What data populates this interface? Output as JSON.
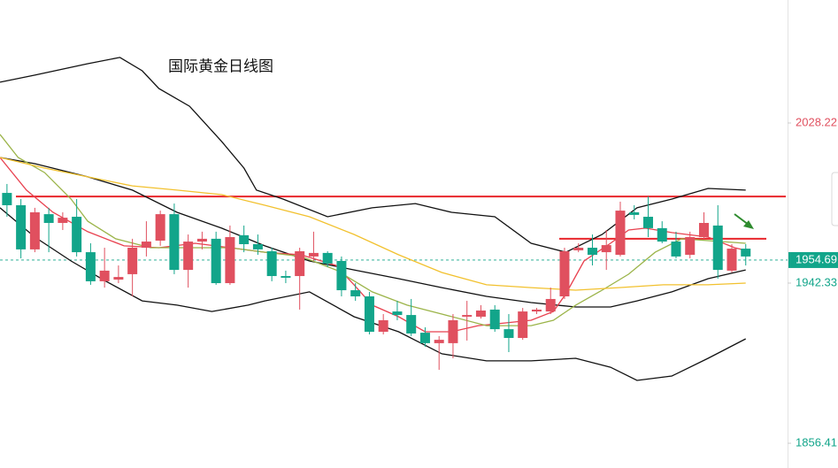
{
  "chart_data": {
    "type": "candlestick",
    "title": "国际黄金日线图",
    "xlim": [
      -0.5,
      56
    ],
    "ylim": [
      1843.13,
      2094.19
    ],
    "yticks": [
      1856.41,
      1942.33,
      2028.22
    ],
    "ytick_colors": [
      "#12a58a",
      "#12a58a",
      "#e0505f"
    ],
    "up_color": "#e0505f",
    "down_color": "#12a58a",
    "open": [
      1990.7,
      1984.1,
      1960.4,
      1979.3,
      1974.6,
      1977.9,
      1958.9,
      1943.3,
      1944.2,
      1947.1,
      1961.3,
      1965.1,
      1979.3,
      1949.4,
      1964.6,
      1966.1,
      1942.3,
      1968.0,
      1963.2,
      1959.4,
      1946.1,
      1946.1,
      1956.6,
      1958.5,
      1954.2,
      1938.5,
      1935.2,
      1916.2,
      1927.1,
      1925.2,
      1915.7,
      1910.1,
      1910.1,
      1924.3,
      1924.3,
      1928.1,
      1917.6,
      1912.9,
      1927.1,
      1927.1,
      1935.2,
      1959.9,
      1961.3,
      1958.9,
      1957.5,
      1980.3,
      1977.9,
      1971.8,
      1964.6,
      1957.5,
      1967.0,
      1973.2,
      1949.0,
      1960.8
    ],
    "close": [
      1984.1,
      1960.4,
      1980.3,
      1974.6,
      1977.4,
      1958.9,
      1943.3,
      1949.0,
      1945.6,
      1961.3,
      1964.6,
      1979.3,
      1949.4,
      1964.6,
      1966.1,
      1942.3,
      1967.0,
      1963.2,
      1960.4,
      1946.1,
      1945.2,
      1959.4,
      1958.5,
      1952.8,
      1938.5,
      1935.2,
      1916.2,
      1922.4,
      1925.2,
      1915.3,
      1910.1,
      1911.9,
      1922.4,
      1925.2,
      1927.6,
      1917.6,
      1912.9,
      1927.1,
      1928.1,
      1933.8,
      1959.4,
      1961.3,
      1957.5,
      1962.7,
      1981.2,
      1978.9,
      1971.8,
      1964.6,
      1956.6,
      1967.0,
      1974.6,
      1949.4,
      1960.8,
      1956.6
    ],
    "high": [
      1995.5,
      1987.4,
      1982.7,
      1982.7,
      1980.3,
      1987.4,
      1963.7,
      1961.3,
      1951.8,
      1966.1,
      1975.5,
      1981.2,
      1985.0,
      1968.4,
      1969.9,
      1969.9,
      1973.2,
      1973.2,
      1968.4,
      1961.3,
      1949.0,
      1961.3,
      1969.9,
      1959.4,
      1956.6,
      1942.3,
      1937.6,
      1925.7,
      1932.8,
      1933.8,
      1918.6,
      1913.9,
      1925.7,
      1932.8,
      1930.5,
      1930.5,
      1925.7,
      1929.0,
      1929.0,
      1939.9,
      1961.3,
      1963.7,
      1968.4,
      1970.8,
      1986.0,
      1984.1,
      1988.8,
      1975.5,
      1969.9,
      1969.9,
      1980.3,
      1984.1,
      1963.2,
      1963.2
    ],
    "low": [
      1977.9,
      1955.6,
      1958.9,
      1958.9,
      1970.8,
      1956.6,
      1941.4,
      1939.9,
      1942.3,
      1935.2,
      1956.6,
      1962.3,
      1947.1,
      1939.9,
      1960.4,
      1941.4,
      1941.4,
      1958.9,
      1957.5,
      1943.3,
      1942.3,
      1928.1,
      1954.2,
      1950.9,
      1935.2,
      1932.8,
      1914.8,
      1914.8,
      1922.4,
      1913.9,
      1908.2,
      1895.8,
      1902.0,
      1911.5,
      1923.3,
      1916.2,
      1905.3,
      1911.9,
      1925.7,
      1925.7,
      1933.8,
      1958.9,
      1951.8,
      1949.4,
      1956.6,
      1976.5,
      1967.0,
      1963.7,
      1955.6,
      1955.6,
      1966.1,
      1944.7,
      1948.0,
      1951.8
    ],
    "lines": [
      {
        "color": "#111111",
        "x": [
          -0.5,
          2.0,
          5.8,
          8.1,
          9.7,
          10.9,
          13.1,
          15.4,
          17.0,
          17.9,
          19.8,
          23.0,
          26.2,
          29.3,
          31.9,
          35.0,
          37.6,
          40.1,
          42.7,
          45.2,
          47.7,
          50.3,
          53.0
        ],
        "values": [
          2050.1,
          2053.9,
          2060.0,
          2063.4,
          2056.2,
          2046.7,
          2037.2,
          2018.3,
          2004.0,
          1992.2,
          1987.4,
          1977.9,
          1982.7,
          1985.0,
          1980.3,
          1977.9,
          1963.7,
          1958.9,
          1968.4,
          1982.7,
          1987.4,
          1993.1,
          1992.2
        ]
      },
      {
        "color": "#111111",
        "x": [
          -0.5,
          2.0,
          5.8,
          9.0,
          12.2,
          15.4,
          18.5,
          21.7,
          24.9,
          28.1,
          31.2,
          34.4,
          37.6,
          40.8,
          43.3,
          45.2,
          47.7,
          50.3,
          53.0
        ],
        "values": [
          2009.7,
          2006.4,
          1999.3,
          1992.2,
          1980.3,
          1971.8,
          1962.3,
          1954.2,
          1949.4,
          1944.7,
          1939.9,
          1935.2,
          1931.9,
          1929.5,
          1929.5,
          1932.8,
          1937.6,
          1944.7,
          1949.4
        ]
      },
      {
        "color": "#111111",
        "x": [
          -0.5,
          2.0,
          4.6,
          7.1,
          9.7,
          12.2,
          14.7,
          17.3,
          18.5,
          21.7,
          24.9,
          28.1,
          31.2,
          34.4,
          37.6,
          40.8,
          43.3,
          45.2,
          47.7,
          50.3,
          53.0
        ],
        "values": [
          1982.7,
          1967.0,
          1954.2,
          1943.3,
          1932.8,
          1930.5,
          1927.1,
          1930.5,
          1932.8,
          1937.6,
          1924.3,
          1916.2,
          1904.4,
          1900.6,
          1900.6,
          1902.0,
          1897.2,
          1890.1,
          1892.5,
          1902.0,
          1912.4
        ]
      },
      {
        "color": "#e8414f",
        "x": [
          -0.5,
          1.4,
          3.3,
          5.8,
          8.4,
          10.9,
          13.5,
          16.0,
          18.5,
          21.1,
          23.6,
          24.9,
          26.2,
          28.1,
          30.0,
          31.9,
          33.8,
          35.7,
          37.6,
          39.2,
          40.1,
          41.4,
          43.3,
          44.6,
          45.8,
          47.7,
          50.3,
          52.2,
          53.0
        ],
        "values": [
          2009.7,
          1992.2,
          1980.3,
          1969.9,
          1962.3,
          1961.3,
          1963.7,
          1961.3,
          1958.9,
          1957.5,
          1951.8,
          1941.4,
          1930.5,
          1924.3,
          1916.2,
          1916.2,
          1919.5,
          1920.9,
          1922.4,
          1927.1,
          1936.6,
          1954.2,
          1963.7,
          1970.8,
          1971.8,
          1969.4,
          1967.0,
          1961.3,
          1959.9
        ]
      },
      {
        "color": "#9bb449",
        "x": [
          -0.5,
          0.8,
          2.7,
          4.6,
          5.8,
          7.8,
          10.3,
          13.5,
          16.0,
          18.5,
          21.1,
          23.6,
          26.2,
          28.7,
          31.2,
          34.4,
          37.6,
          39.2,
          40.8,
          42.7,
          44.6,
          46.5,
          48.4,
          50.3,
          53.0
        ],
        "values": [
          2022.1,
          2009.7,
          2001.6,
          1987.4,
          1975.5,
          1966.1,
          1961.3,
          1961.3,
          1961.3,
          1958.9,
          1956.6,
          1949.4,
          1937.6,
          1930.5,
          1925.7,
          1919.5,
          1919.5,
          1922.4,
          1930.5,
          1938.5,
          1947.1,
          1958.9,
          1966.1,
          1965.1,
          1963.7
        ]
      },
      {
        "color": "#f2c12e",
        "x": [
          -0.5,
          2.7,
          5.8,
          9.0,
          12.2,
          15.4,
          18.5,
          21.7,
          24.9,
          28.1,
          31.2,
          34.4,
          37.6,
          40.8,
          43.9,
          47.1,
          50.3,
          53.0
        ],
        "values": [
          2009.7,
          2004.0,
          1999.3,
          1994.5,
          1992.2,
          1989.8,
          1984.1,
          1977.9,
          1968.4,
          1957.5,
          1948.0,
          1941.4,
          1939.9,
          1938.5,
          1939.9,
          1941.4,
          1941.4,
          1942.3
        ]
      }
    ],
    "hlines": [
      {
        "value": 1988.8,
        "color": "#e8262c"
      },
      {
        "value": 1966.1,
        "color": "#e8262c"
      }
    ],
    "last_price": 1954.69,
    "last_price_color": "#12a58a"
  }
}
